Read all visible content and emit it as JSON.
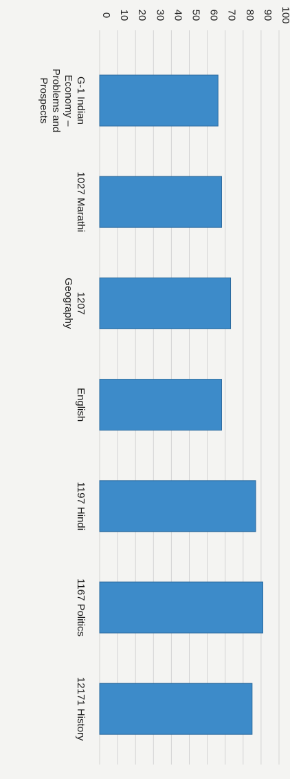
{
  "chart_data": {
    "type": "bar",
    "orientation": "image rotated 90deg clockwise",
    "title": "",
    "xlabel": "",
    "ylabel": "",
    "categories": [
      [
        "G-1 Indian",
        "Economy –",
        "Problems and",
        "Prospects"
      ],
      [
        "1027 Marathi"
      ],
      [
        "1207",
        "Geography"
      ],
      [
        "English"
      ],
      [
        "1197 Hindi"
      ],
      [
        "1167 Politics"
      ],
      [
        "12171 History"
      ]
    ],
    "values": [
      66,
      68,
      73,
      68,
      87,
      91,
      85
    ],
    "ylim": [
      0,
      100
    ],
    "yticks": [
      "0",
      "10",
      "20",
      "30",
      "40",
      "50",
      "60",
      "70",
      "80",
      "90",
      "100"
    ],
    "grid": true,
    "legend": "none",
    "bar_color": "#3d8bc9"
  }
}
